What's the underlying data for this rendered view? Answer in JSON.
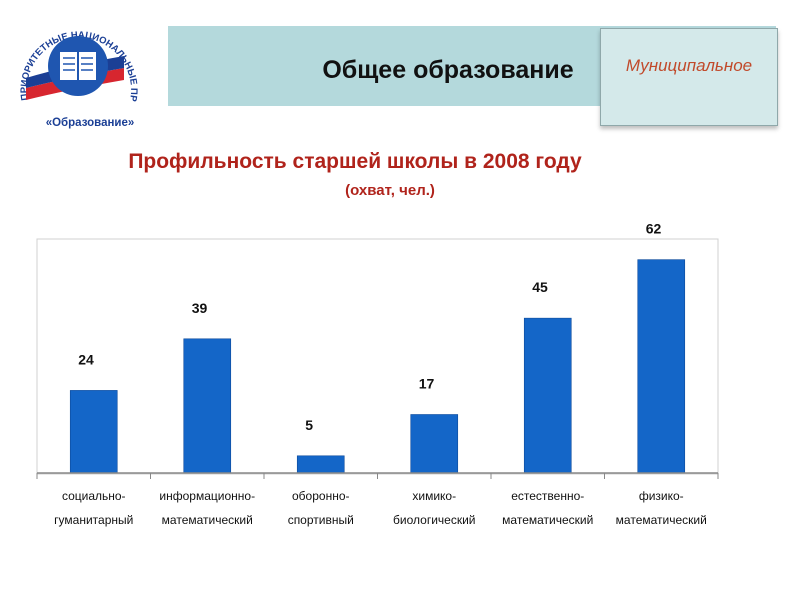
{
  "logo": {
    "arc_text": "ПРИОРИТЕТНЫЕ НАЦИОНАЛЬНЫЕ ПРОЕКТЫ",
    "caption": "«Образование»"
  },
  "header": {
    "title": "Общее образование",
    "badge": "Муниципальное"
  },
  "colors": {
    "bar": "#1466c8",
    "title": "#b0231b",
    "header_bg": "#b4d9dc",
    "badge_text": "#c14a2b"
  },
  "chart_data": {
    "type": "bar",
    "title": "Профильность старшей школы в 2008 году",
    "subtitle": "(охват, чел.)",
    "categories": [
      [
        "социально-",
        "гуманитарный"
      ],
      [
        "информационно-",
        "математический"
      ],
      [
        "оборонно-",
        "спортивный"
      ],
      [
        "химико-",
        "биологический"
      ],
      [
        "естественно-",
        "математический"
      ],
      [
        "физико-",
        "математический"
      ]
    ],
    "values": [
      24,
      39,
      5,
      17,
      45,
      62
    ],
    "data_labels": true,
    "ylim": [
      0,
      68
    ],
    "grid": false
  }
}
